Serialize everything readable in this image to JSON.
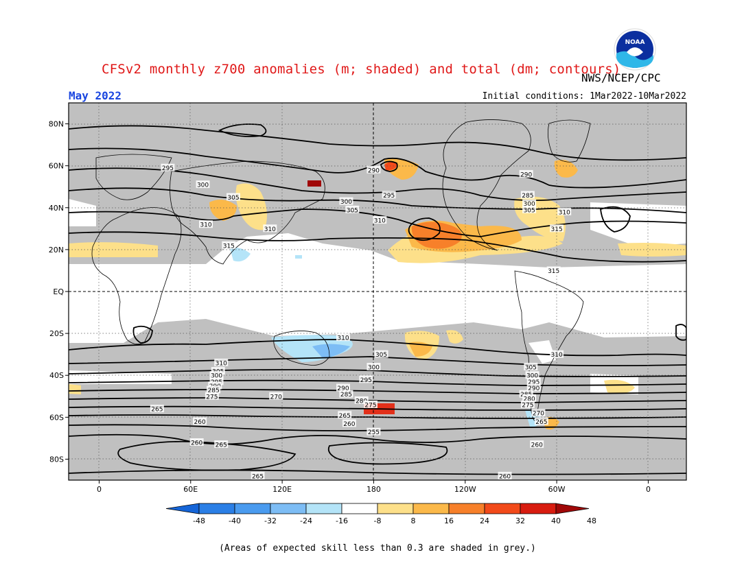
{
  "header": {
    "title": "CFSv2 monthly z700 anomalies (m; shaded) and total (dm; contours)",
    "agency": "NWS/NCEP/CPC",
    "valid_month": "May 2022",
    "initial_conditions": "Initial conditions: 1Mar2022-10Mar2022",
    "logo_text": "NOAA"
  },
  "map": {
    "lon_labels": [
      "0",
      "60E",
      "120E",
      "180",
      "120W",
      "60W",
      "0"
    ],
    "lat_labels": [
      "80N",
      "60N",
      "40N",
      "20N",
      "EQ",
      "20S",
      "40S",
      "60S",
      "80S"
    ],
    "contour_labels": [
      {
        "text": "295",
        "lon": 45,
        "lat": 59
      },
      {
        "text": "300",
        "lon": 68,
        "lat": 51
      },
      {
        "text": "305",
        "lon": 88,
        "lat": 45
      },
      {
        "text": "310",
        "lon": 70,
        "lat": 32
      },
      {
        "text": "310",
        "lon": 112,
        "lat": 30
      },
      {
        "text": "315",
        "lon": 85,
        "lat": 22
      },
      {
        "text": "290",
        "lon": 180,
        "lat": 58
      },
      {
        "text": "295",
        "lon": 190,
        "lat": 46
      },
      {
        "text": "300",
        "lon": 162,
        "lat": 43
      },
      {
        "text": "305",
        "lon": 166,
        "lat": 39
      },
      {
        "text": "310",
        "lon": 184,
        "lat": 34
      },
      {
        "text": "290",
        "lon": 280,
        "lat": 56
      },
      {
        "text": "285",
        "lon": 281,
        "lat": 46
      },
      {
        "text": "300",
        "lon": 282,
        "lat": 42
      },
      {
        "text": "305",
        "lon": 282,
        "lat": 39
      },
      {
        "text": "310",
        "lon": 305,
        "lat": 38
      },
      {
        "text": "315",
        "lon": 300,
        "lat": 30
      },
      {
        "text": "315",
        "lon": 298,
        "lat": 10
      },
      {
        "text": "310",
        "lon": 160,
        "lat": -22
      },
      {
        "text": "305",
        "lon": 185,
        "lat": -30
      },
      {
        "text": "310",
        "lon": 300,
        "lat": -30
      },
      {
        "text": "300",
        "lon": 180,
        "lat": -36
      },
      {
        "text": "305",
        "lon": 283,
        "lat": -36
      },
      {
        "text": "295",
        "lon": 175,
        "lat": -42
      },
      {
        "text": "310",
        "lon": 80,
        "lat": -34
      },
      {
        "text": "305",
        "lon": 78,
        "lat": -38
      },
      {
        "text": "300",
        "lon": 77,
        "lat": -40
      },
      {
        "text": "295",
        "lon": 77,
        "lat": -43
      },
      {
        "text": "290",
        "lon": 76,
        "lat": -45
      },
      {
        "text": "285",
        "lon": 75,
        "lat": -47
      },
      {
        "text": "275",
        "lon": 74,
        "lat": -50
      },
      {
        "text": "270",
        "lon": 116,
        "lat": -50
      },
      {
        "text": "265",
        "lon": 38,
        "lat": -56
      },
      {
        "text": "260",
        "lon": 66,
        "lat": -62
      },
      {
        "text": "260",
        "lon": 64,
        "lat": -72
      },
      {
        "text": "265",
        "lon": 80,
        "lat": -73
      },
      {
        "text": "265",
        "lon": 104,
        "lat": -88
      },
      {
        "text": "290",
        "lon": 160,
        "lat": -46
      },
      {
        "text": "285",
        "lon": 162,
        "lat": -49
      },
      {
        "text": "280",
        "lon": 172,
        "lat": -52
      },
      {
        "text": "275",
        "lon": 178,
        "lat": -54
      },
      {
        "text": "265",
        "lon": 161,
        "lat": -59
      },
      {
        "text": "260",
        "lon": 164,
        "lat": -63
      },
      {
        "text": "255",
        "lon": 180,
        "lat": -67
      },
      {
        "text": "300",
        "lon": 284,
        "lat": -40
      },
      {
        "text": "295",
        "lon": 285,
        "lat": -43
      },
      {
        "text": "290",
        "lon": 285,
        "lat": -46
      },
      {
        "text": "285",
        "lon": 280,
        "lat": -49
      },
      {
        "text": "280",
        "lon": 282,
        "lat": -51
      },
      {
        "text": "275",
        "lon": 281,
        "lat": -54
      },
      {
        "text": "270",
        "lon": 288,
        "lat": -58
      },
      {
        "text": "265",
        "lon": 290,
        "lat": -62
      },
      {
        "text": "260",
        "lon": 287,
        "lat": -73
      },
      {
        "text": "260",
        "lon": 266,
        "lat": -88
      }
    ]
  },
  "colorbar": {
    "labels": [
      "-48",
      "-40",
      "-32",
      "-24",
      "-16",
      "-8",
      "8",
      "16",
      "24",
      "32",
      "40",
      "48"
    ],
    "colors": [
      "#1565d8",
      "#2b7fe6",
      "#4a9bef",
      "#7dbdf5",
      "#b4e4f8",
      "#ffffff",
      "#fde08a",
      "#fbb94a",
      "#f7802a",
      "#f24a1a",
      "#d81c10",
      "#a00808"
    ]
  },
  "footnote": "(Areas of expected skill less than 0.3 are shaded in grey.)"
}
